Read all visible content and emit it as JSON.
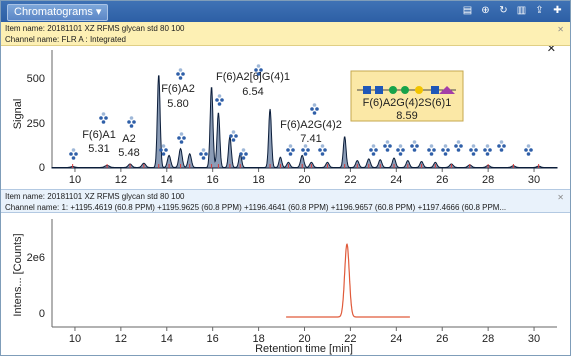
{
  "toolbar": {
    "tab_label": "Chromatograms ▾"
  },
  "top_panel": {
    "item_name": "Item name: 20181101 XZ RFMS glycan std 80 100",
    "channel_name": "Channel name: FLR A : Integrated",
    "ylabel": "Signal",
    "y_ticks": [
      "0",
      "250",
      "500"
    ],
    "x_ticks": [
      "10",
      "12",
      "14",
      "16",
      "18",
      "20",
      "22",
      "24",
      "26",
      "28",
      "30"
    ],
    "annotations": [
      {
        "name": "F(6)A1",
        "rt": "5.31"
      },
      {
        "name": "A2",
        "rt": "5.48"
      },
      {
        "name": "F(6)A2",
        "rt": "5.80"
      },
      {
        "name": "F(6)A2[6]G(4)1",
        "rt": "6.54"
      },
      {
        "name": "F(6)A2G(4)2",
        "rt": "7.41"
      },
      {
        "name": "F(6)A2G(4)2S(6)1",
        "rt": "8.59"
      }
    ]
  },
  "bottom_panel": {
    "item_name": "Item name: 20181101 XZ RFMS glycan std 80 100",
    "channel_name": "Channel name: 1: +1195.4619 (60.8 PPM) +1195.9625 (60.8 PPM) +1196.4641 (60.8 PPM) +1196.9657 (60.8 PPM) +1197.4666 (60.8 PPM...",
    "ylabel": "Intens... [Counts]",
    "y_ticks": [
      "0",
      "2e6"
    ],
    "x_ticks": [
      "10",
      "12",
      "14",
      "16",
      "18",
      "20",
      "22",
      "24",
      "26",
      "28",
      "30"
    ],
    "xlabel": "Retention time [min]"
  },
  "colors": {
    "trace_top": "#0b1d3a",
    "trace_bottom": "#e05a3a",
    "highlight_box": "#fbe8a6"
  }
}
